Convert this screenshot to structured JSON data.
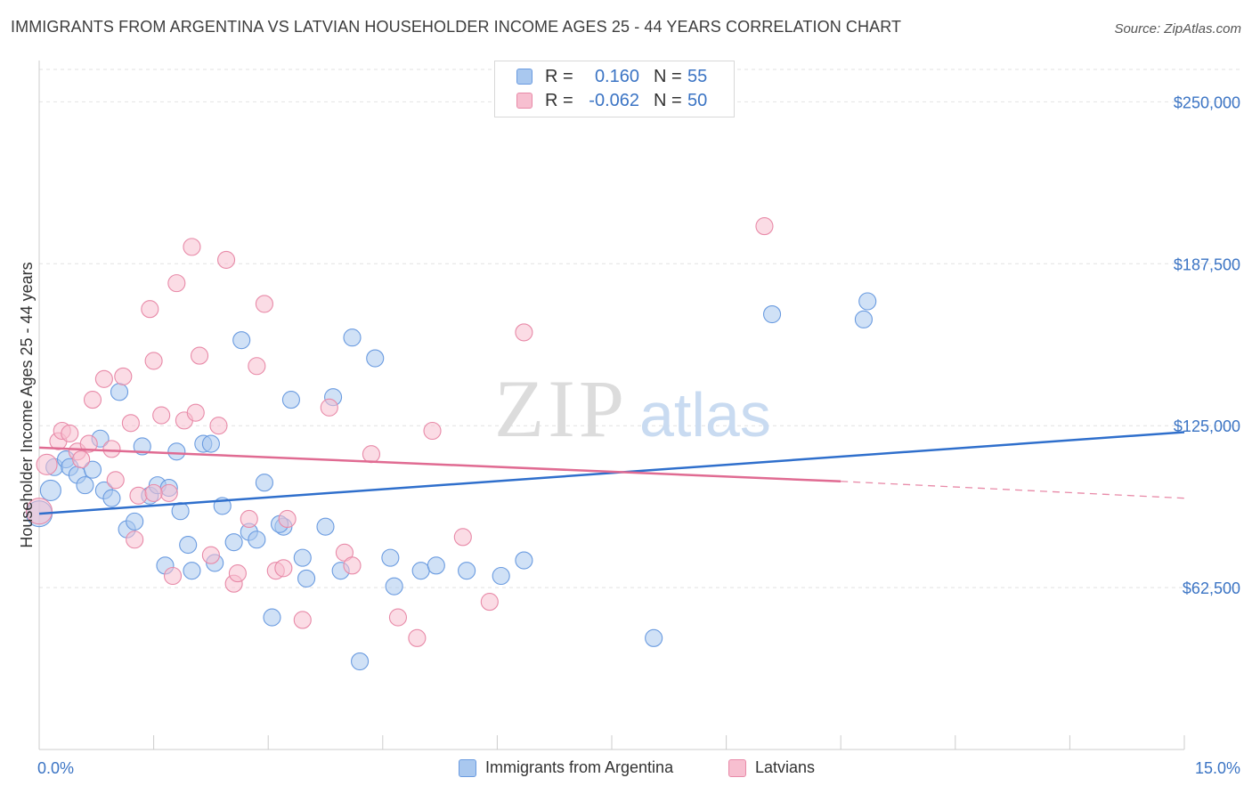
{
  "header": {
    "title": "IMMIGRANTS FROM ARGENTINA VS LATVIAN HOUSEHOLDER INCOME AGES 25 - 44 YEARS CORRELATION CHART",
    "source": "Source: ZipAtlas.com"
  },
  "watermark": {
    "zip": "ZIP",
    "atlas": "atlas"
  },
  "legend": {
    "rows": [
      {
        "r_label": "R =",
        "r_value": "0.160",
        "n_label": "N =",
        "n_value": "55",
        "color": "#a9c8ef",
        "border": "#6a9be0"
      },
      {
        "r_label": "R =",
        "r_value": "-0.062",
        "n_label": "N =",
        "n_value": "50",
        "color": "#f7bfd0",
        "border": "#e88aa8"
      }
    ]
  },
  "bottom_legend": [
    {
      "label": "Immigrants from Argentina",
      "color": "#a9c8ef",
      "border": "#6a9be0"
    },
    {
      "label": "Latvians",
      "color": "#f7bfd0",
      "border": "#e88aa8"
    }
  ],
  "chart_data": {
    "type": "scatter",
    "title": "IMMIGRANTS FROM ARGENTINA VS LATVIAN HOUSEHOLDER INCOME AGES 25 - 44 YEARS CORRELATION CHART",
    "xlabel": "",
    "ylabel": "Householder Income Ages 25 - 44 years",
    "xlim": [
      0,
      15
    ],
    "ylim": [
      0,
      262500
    ],
    "x_tick_labels": [
      "0.0%",
      "15.0%"
    ],
    "y_ticks": [
      62500,
      125000,
      187500,
      250000
    ],
    "y_tick_labels": [
      "$62,500",
      "$125,000",
      "$187,500",
      "$250,000"
    ],
    "grid": true,
    "series": [
      {
        "name": "Immigrants from Argentina",
        "color": "#6a9be0",
        "fill": "#a9c8ef",
        "trend": {
          "x": [
            0,
            15
          ],
          "y": [
            91000,
            122500
          ],
          "style": "solid",
          "color": "#2f6fcc"
        },
        "points": [
          [
            0.0,
            91000,
            26
          ],
          [
            0.15,
            100000,
            20
          ],
          [
            0.2,
            109000,
            16
          ],
          [
            0.35,
            112000,
            16
          ],
          [
            0.4,
            109000,
            16
          ],
          [
            0.5,
            106000,
            16
          ],
          [
            0.6,
            102000,
            16
          ],
          [
            0.7,
            108000,
            16
          ],
          [
            0.8,
            120000,
            16
          ],
          [
            0.85,
            100000,
            16
          ],
          [
            0.95,
            97000,
            16
          ],
          [
            1.05,
            138000,
            16
          ],
          [
            1.15,
            85000,
            16
          ],
          [
            1.25,
            88000,
            16
          ],
          [
            1.35,
            117000,
            16
          ],
          [
            1.45,
            98000,
            16
          ],
          [
            1.55,
            102000,
            16
          ],
          [
            1.65,
            71000,
            16
          ],
          [
            1.7,
            101000,
            16
          ],
          [
            1.8,
            115000,
            16
          ],
          [
            1.85,
            92000,
            16
          ],
          [
            1.95,
            79000,
            16
          ],
          [
            2.0,
            69000,
            16
          ],
          [
            2.15,
            118000,
            16
          ],
          [
            2.25,
            118000,
            16
          ],
          [
            2.3,
            72000,
            16
          ],
          [
            2.4,
            94000,
            16
          ],
          [
            2.55,
            80000,
            16
          ],
          [
            2.65,
            158000,
            16
          ],
          [
            2.75,
            84000,
            16
          ],
          [
            2.85,
            81000,
            16
          ],
          [
            2.95,
            103000,
            16
          ],
          [
            3.05,
            51000,
            16
          ],
          [
            3.2,
            86000,
            16
          ],
          [
            3.3,
            135000,
            16
          ],
          [
            3.45,
            74000,
            16
          ],
          [
            3.5,
            66000,
            16
          ],
          [
            3.75,
            86000,
            16
          ],
          [
            3.85,
            136000,
            16
          ],
          [
            3.95,
            69000,
            16
          ],
          [
            4.1,
            159000,
            16
          ],
          [
            4.2,
            34000,
            16
          ],
          [
            4.4,
            151000,
            16
          ],
          [
            4.6,
            74000,
            16
          ],
          [
            4.65,
            63000,
            16
          ],
          [
            5.0,
            69000,
            16
          ],
          [
            5.2,
            71000,
            16
          ],
          [
            5.6,
            69000,
            16
          ],
          [
            6.05,
            67000,
            16
          ],
          [
            6.35,
            73000,
            16
          ],
          [
            8.05,
            43000,
            16
          ],
          [
            9.6,
            168000,
            16
          ],
          [
            10.8,
            166000,
            16
          ],
          [
            10.85,
            173000,
            16
          ],
          [
            3.15,
            87000,
            16
          ]
        ]
      },
      {
        "name": "Latvians",
        "color": "#e88aa8",
        "fill": "#f7bfd0",
        "trend": {
          "x": [
            0,
            10.5
          ],
          "y": [
            116500,
            103500
          ],
          "style": "solid",
          "color": "#e06b92"
        },
        "trend_extension": {
          "x": [
            10.5,
            15
          ],
          "y": [
            103500,
            97000
          ],
          "style": "dashed",
          "color": "#e88aa8"
        },
        "points": [
          [
            0.0,
            92000,
            26
          ],
          [
            0.1,
            110000,
            20
          ],
          [
            0.25,
            119000,
            16
          ],
          [
            0.3,
            123000,
            16
          ],
          [
            0.4,
            122000,
            16
          ],
          [
            0.5,
            115000,
            16
          ],
          [
            0.55,
            112000,
            16
          ],
          [
            0.65,
            118000,
            16
          ],
          [
            0.7,
            135000,
            16
          ],
          [
            0.85,
            143000,
            16
          ],
          [
            0.95,
            116000,
            16
          ],
          [
            1.0,
            104000,
            16
          ],
          [
            1.1,
            144000,
            16
          ],
          [
            1.2,
            126000,
            16
          ],
          [
            1.25,
            81000,
            16
          ],
          [
            1.3,
            98000,
            16
          ],
          [
            1.45,
            170000,
            16
          ],
          [
            1.5,
            150000,
            16
          ],
          [
            1.6,
            129000,
            16
          ],
          [
            1.7,
            99000,
            16
          ],
          [
            1.75,
            67000,
            16
          ],
          [
            1.8,
            180000,
            16
          ],
          [
            1.9,
            127000,
            16
          ],
          [
            2.0,
            194000,
            16
          ],
          [
            2.05,
            130000,
            16
          ],
          [
            2.1,
            152000,
            16
          ],
          [
            2.25,
            75000,
            16
          ],
          [
            2.35,
            125000,
            16
          ],
          [
            2.45,
            189000,
            16
          ],
          [
            2.55,
            64000,
            16
          ],
          [
            2.6,
            68000,
            16
          ],
          [
            2.75,
            89000,
            16
          ],
          [
            2.85,
            148000,
            16
          ],
          [
            2.95,
            172000,
            16
          ],
          [
            3.1,
            69000,
            16
          ],
          [
            3.2,
            70000,
            16
          ],
          [
            3.25,
            89000,
            16
          ],
          [
            3.45,
            50000,
            16
          ],
          [
            3.8,
            132000,
            16
          ],
          [
            4.0,
            76000,
            16
          ],
          [
            4.1,
            71000,
            16
          ],
          [
            4.35,
            114000,
            16
          ],
          [
            4.7,
            51000,
            16
          ],
          [
            4.95,
            43000,
            16
          ],
          [
            5.15,
            123000,
            16
          ],
          [
            5.55,
            82000,
            16
          ],
          [
            5.9,
            57000,
            16
          ],
          [
            6.35,
            161000,
            16
          ],
          [
            9.5,
            202000,
            16
          ],
          [
            1.5,
            99000,
            16
          ]
        ]
      }
    ]
  }
}
